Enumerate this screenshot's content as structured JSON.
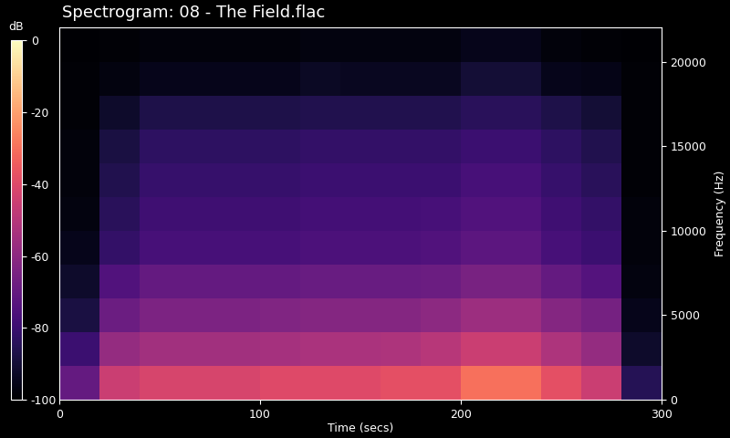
{
  "chart_data": {
    "type": "heatmap",
    "title": "Spectrogram: 08 - The Field.flac",
    "x_label": "Time (secs)",
    "y_label": "Frequency (Hz)",
    "colorbar_label": "dB",
    "color": "magma",
    "xlim": [
      0,
      300
    ],
    "ylim": [
      0,
      22050
    ],
    "xticks": [
      0,
      100,
      200,
      300
    ],
    "yticks": [
      0,
      5000,
      10000,
      15000,
      20000
    ],
    "colorbar_range": [
      -100,
      0
    ],
    "colorbar_ticks": [
      -100,
      -80,
      -60,
      -40,
      -20,
      0
    ],
    "x_edges": [
      0,
      20,
      40,
      60,
      80,
      100,
      120,
      140,
      160,
      180,
      200,
      220,
      240,
      260,
      280,
      300
    ],
    "y_edges": [
      0,
      2000,
      4000,
      6000,
      8000,
      10000,
      12000,
      14000,
      16000,
      18000,
      20000,
      22050
    ],
    "cells": [
      [
        -70,
        -45,
        -42,
        -42,
        -42,
        -40,
        -40,
        -40,
        -38,
        -38,
        -30,
        -30,
        -38,
        -45,
        -85
      ],
      [
        -80,
        -58,
        -55,
        -55,
        -55,
        -54,
        -53,
        -53,
        -52,
        -50,
        -45,
        -45,
        -52,
        -58,
        -92
      ],
      [
        -88,
        -68,
        -64,
        -64,
        -64,
        -63,
        -62,
        -62,
        -62,
        -60,
        -56,
        -56,
        -62,
        -66,
        -95
      ],
      [
        -92,
        -75,
        -70,
        -70,
        -70,
        -70,
        -69,
        -69,
        -69,
        -68,
        -65,
        -65,
        -70,
        -74,
        -97
      ],
      [
        -95,
        -82,
        -77,
        -77,
        -77,
        -77,
        -76,
        -76,
        -76,
        -75,
        -72,
        -72,
        -77,
        -80,
        -98
      ],
      [
        -97,
        -84,
        -79,
        -79,
        -79,
        -79,
        -78,
        -78,
        -78,
        -77,
        -75,
        -75,
        -79,
        -82,
        -98
      ],
      [
        -98,
        -86,
        -81,
        -81,
        -81,
        -81,
        -80,
        -80,
        -80,
        -80,
        -77,
        -77,
        -81,
        -84,
        -99
      ],
      [
        -98,
        -88,
        -83,
        -83,
        -83,
        -83,
        -82,
        -82,
        -82,
        -82,
        -80,
        -80,
        -83,
        -86,
        -99
      ],
      [
        -99,
        -92,
        -87,
        -87,
        -87,
        -87,
        -86,
        -86,
        -86,
        -86,
        -84,
        -84,
        -87,
        -90,
        -99
      ],
      [
        -99,
        -97,
        -95,
        -95,
        -95,
        -95,
        -93,
        -94,
        -94,
        -94,
        -90,
        -90,
        -95,
        -96,
        -99
      ],
      [
        -100,
        -99,
        -98,
        -98,
        -98,
        -98,
        -97,
        -97,
        -97,
        -97,
        -95,
        -95,
        -98,
        -99,
        -100
      ]
    ]
  }
}
